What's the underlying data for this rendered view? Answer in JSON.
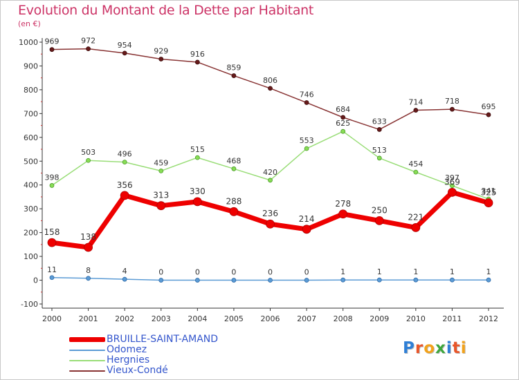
{
  "header": {
    "title": "Evolution du Montant de la Dette par Habitant",
    "subtitle": "(en €)"
  },
  "logo": {
    "text": "Proxiti",
    "letter_colors": [
      "#2e7fd6",
      "#e8562a",
      "#f2a21b",
      "#3da63d",
      "#2e7fd6",
      "#e8562a",
      "#f2a21b"
    ]
  },
  "chart_data": {
    "type": "line",
    "title": "Evolution du Montant de la Dette par Habitant",
    "subtitle": "(en €)",
    "xlabel": "",
    "ylabel": "",
    "x": [
      "2000",
      "2001",
      "2002",
      "2003",
      "2004",
      "2005",
      "2006",
      "2007",
      "2008",
      "2009",
      "2010",
      "2011",
      "2012"
    ],
    "ylim": [
      -100,
      1000
    ],
    "yticks": [
      -100,
      0,
      100,
      200,
      300,
      400,
      500,
      600,
      700,
      800,
      900,
      1000
    ],
    "grid": false,
    "legend_position": "bottom-left",
    "series": [
      {
        "name": "BRUILLE-SAINT-AMAND",
        "color": "#ee0000",
        "values": [
          158,
          138,
          356,
          313,
          330,
          288,
          236,
          214,
          278,
          250,
          221,
          369,
          325
        ],
        "labels": [
          "158",
          "138",
          "356",
          "313",
          "330",
          "288",
          "236",
          "214",
          "278",
          "250",
          "221",
          "369",
          "325"
        ]
      },
      {
        "name": "Odomez",
        "color": "#5b9bd5",
        "values": [
          11,
          8,
          4,
          0,
          0,
          0,
          0,
          0,
          1,
          1,
          1,
          1,
          1
        ],
        "labels": [
          "11",
          "8",
          "4",
          "0",
          "0",
          "0",
          "0",
          "0",
          "1",
          "1",
          "1",
          "1",
          "1"
        ]
      },
      {
        "name": "Hergnies",
        "color": "#99dd77",
        "values": [
          398,
          503,
          496,
          459,
          515,
          468,
          420,
          553,
          625,
          513,
          454,
          397,
          341
        ],
        "labels": [
          "398",
          "503",
          "496",
          "459",
          "515",
          "468",
          "420",
          "553",
          "625",
          "513",
          "454",
          "397",
          "341"
        ]
      },
      {
        "name": "Vieux-Condé",
        "color": "#883333",
        "values": [
          969,
          972,
          954,
          929,
          916,
          859,
          806,
          746,
          684,
          633,
          714,
          718,
          695
        ],
        "labels": [
          "969",
          "972",
          "954",
          "929",
          "916",
          "859",
          "806",
          "746",
          "684",
          "633",
          "714",
          "718",
          "695"
        ]
      }
    ]
  }
}
